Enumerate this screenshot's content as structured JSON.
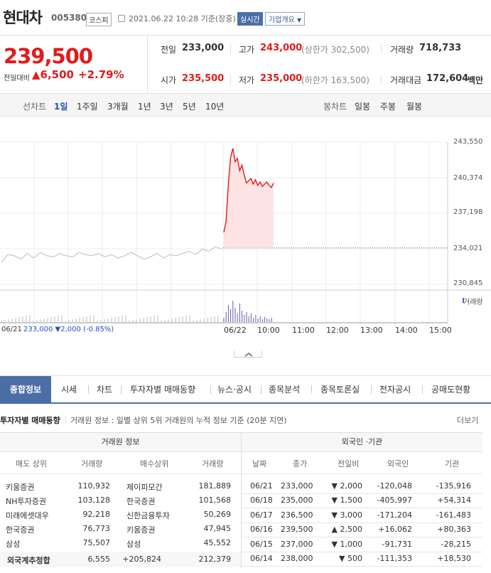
{
  "header": {
    "name": "현대차",
    "code": "005380",
    "market": "코스피",
    "datetime": "2021.06.22 10:28 기준(장중)",
    "realtime": "실시간",
    "company_info": "기업개요"
  },
  "price": {
    "current": "239,500",
    "change_label": "전일대비",
    "change_value": "▲6,500",
    "change_pct": "+2.79%"
  },
  "stats": {
    "prev_label": "전일",
    "prev": "233,000",
    "high_label": "고가",
    "high": "243,000",
    "upper_limit": "(상한가 302,500)",
    "volume_label": "거래량",
    "volume": "718,733",
    "open_label": "시가",
    "open": "235,500",
    "low_label": "저가",
    "low": "235,000",
    "lower_limit": "(하한가 163,500)",
    "amount_label": "거래대금",
    "amount": "172,604",
    "amount_unit": "백만"
  },
  "periods": {
    "label": "선차트",
    "items": [
      "1일",
      "1주일",
      "3개월",
      "1년",
      "3년",
      "5년",
      "10년"
    ],
    "candle_label": "봉차트",
    "candles": [
      "일봉",
      "주봉",
      "월봉"
    ]
  },
  "chart_data": {
    "type": "line",
    "y_ticks": [
      "243,550",
      "240,374",
      "237,198",
      "234,021",
      "230,845"
    ],
    "ylim": [
      230845,
      243550
    ],
    "x_ticks": [
      "06/22",
      "10:00",
      "11:00",
      "12:00",
      "13:00",
      "14:00",
      "15:00"
    ],
    "volume_label": "거래량",
    "prev_day_label": "06/21",
    "prev_day_text": "233,000 ▼2,000 (-0.85%)",
    "series": [
      {
        "values": [
          232800,
          233500,
          233400,
          233100,
          233600,
          233200,
          233700,
          233400,
          233300,
          233600,
          233400,
          233300,
          233700,
          233500,
          233400,
          233600,
          233300,
          233500,
          233200,
          233400,
          233700,
          233400,
          233100,
          233300,
          233600,
          233200,
          233500,
          233400,
          233600,
          233800,
          233500,
          234000,
          233800,
          234200,
          234000
        ]
      },
      {
        "values": [
          235500,
          236500,
          239800,
          242200,
          243000,
          241800,
          242100,
          241000,
          241500,
          240600,
          239900,
          240100,
          240300,
          239800,
          240200,
          239700,
          240000,
          239600,
          239800,
          240000,
          239700,
          239500,
          239900
        ]
      }
    ],
    "prev_close": 233000
  },
  "tabs": [
    "종합정보",
    "시세",
    "차트",
    "투자자별 매매동향",
    "뉴스·공시",
    "종목분석",
    "종목토론실",
    "전자공시",
    "공매도현황"
  ],
  "investor": {
    "title": "투자자별 매매동향",
    "desc": "거래원 정보 : 일별 상위 5위 거래원의 누적 정보 기준 (20분 지연)",
    "more": "더보기",
    "left_header": "거래원 정보",
    "right_header": "외국인 ·기관",
    "left_cols": [
      "매도 상위",
      "거래량",
      "매수상위",
      "거래량"
    ],
    "right_cols": [
      "날짜",
      "종가",
      "전일비",
      "외국인",
      "기관"
    ],
    "brokers": [
      {
        "sell": "키움증권",
        "sell_vol": "110,932",
        "buy": "제이피모간",
        "buy_vol": "181,889",
        "buy_red": true
      },
      {
        "sell": "NH투자증권",
        "sell_vol": "103,128",
        "buy": "한국증권",
        "buy_vol": "101,568"
      },
      {
        "sell": "미래에셋대우",
        "sell_vol": "92,218",
        "buy": "신한금융투자",
        "buy_vol": "50,269"
      },
      {
        "sell": "한국증권",
        "sell_vol": "76,773",
        "buy": "키움증권",
        "buy_vol": "47,945"
      },
      {
        "sell": "삼성",
        "sell_vol": "75,507",
        "buy": "삼성",
        "buy_vol": "45,552"
      }
    ],
    "total": {
      "label": "외국계추정합",
      "sell_vol": "6,555",
      "net": "+205,824",
      "buy_vol": "212,379"
    },
    "daily": [
      {
        "date": "06/21",
        "close": "233,000",
        "chg": "▼ 2,000",
        "up": false,
        "foreign": "-120,048",
        "inst": "-135,916"
      },
      {
        "date": "06/18",
        "close": "235,000",
        "chg": "▼ 1,500",
        "up": false,
        "foreign": "-405,997",
        "inst": "+54,314"
      },
      {
        "date": "06/17",
        "close": "236,500",
        "chg": "▼ 3,000",
        "up": false,
        "foreign": "-171,204",
        "inst": "-161,483"
      },
      {
        "date": "06/16",
        "close": "239,500",
        "chg": "▲ 2,500",
        "up": true,
        "foreign": "+16,062",
        "inst": "+80,363"
      },
      {
        "date": "06/15",
        "close": "237,000",
        "chg": "▼ 1,000",
        "up": false,
        "foreign": "-91,731",
        "inst": "-28,215"
      },
      {
        "date": "06/14",
        "close": "238,000",
        "chg": "▼ 500",
        "up": false,
        "foreign": "-111,353",
        "inst": "+18,530"
      }
    ]
  }
}
